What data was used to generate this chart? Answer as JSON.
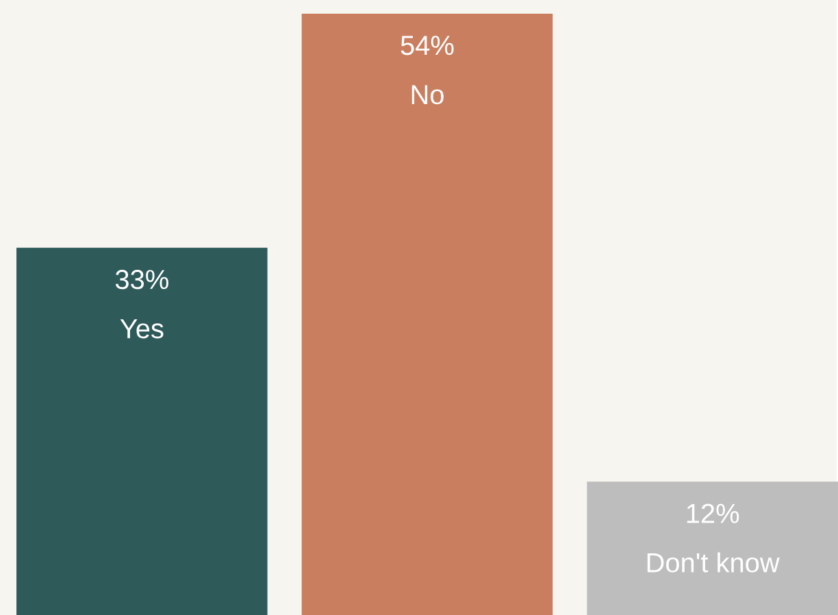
{
  "chart_data": {
    "type": "bar",
    "categories": [
      "Yes",
      "No",
      "Don't know"
    ],
    "values": [
      33,
      54,
      12
    ],
    "colors": [
      "#2f5a5a",
      "#c97e5f",
      "#bdbdbd"
    ],
    "value_labels": [
      "33%",
      "54%",
      "12%"
    ]
  }
}
